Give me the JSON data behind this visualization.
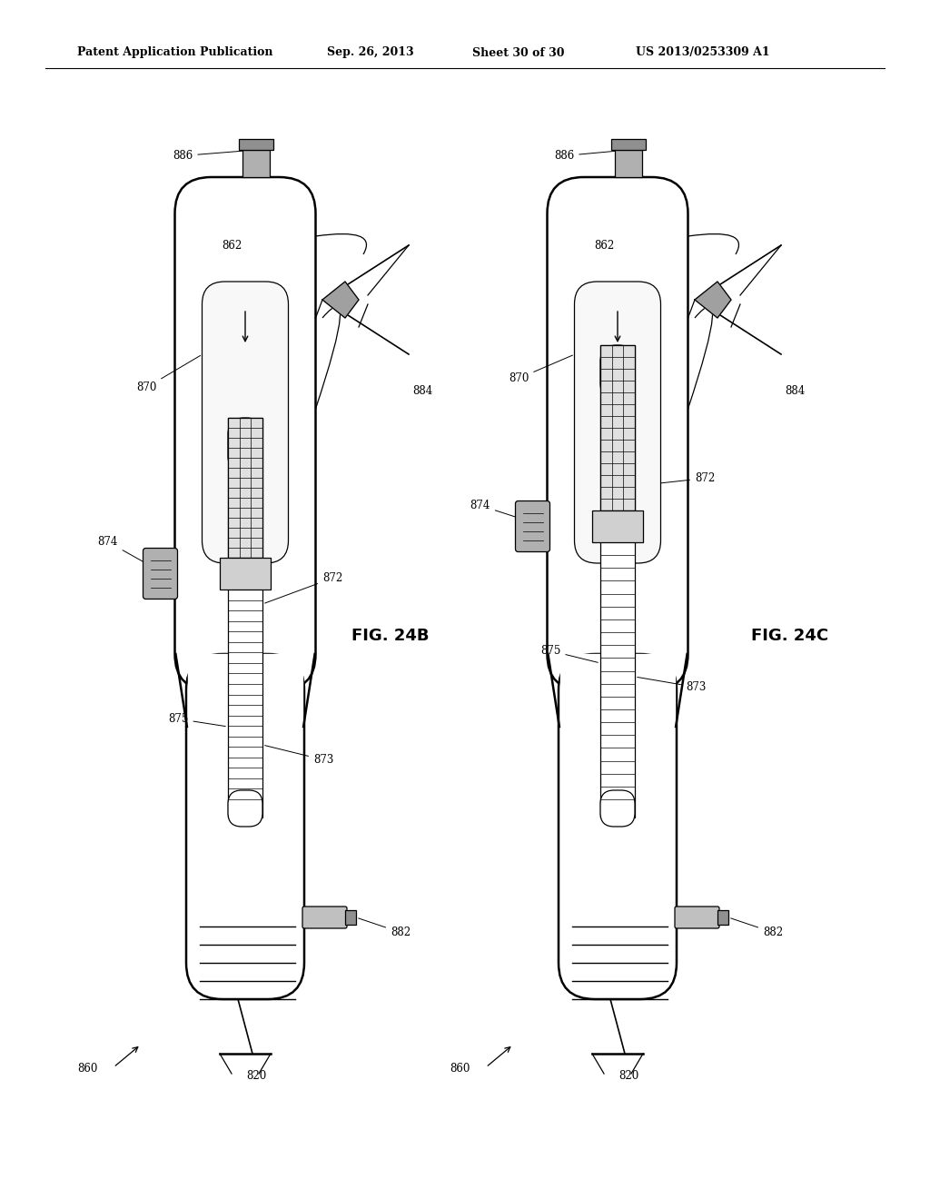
{
  "bg_color": "#ffffff",
  "line_color": "#000000",
  "header_text": "Patent Application Publication",
  "header_date": "Sep. 26, 2013",
  "header_sheet": "Sheet 30 of 30",
  "header_patent": "US 2013/0253309 A1",
  "fig_label_left": "FIG. 24B",
  "fig_label_right": "FIG. 24C",
  "lw_body": 1.8,
  "lw_thin": 0.9,
  "lw_med": 1.2
}
